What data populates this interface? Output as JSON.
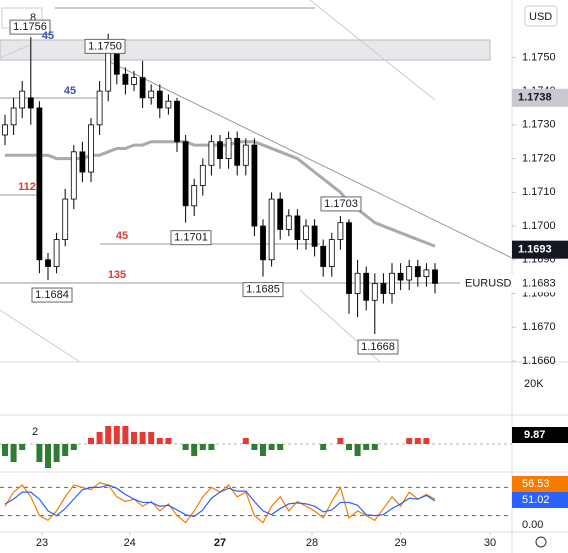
{
  "chart_data": {
    "type": "candlestick",
    "currency": "USD",
    "interval": "8",
    "ylim": [
      1.166,
      1.1767
    ],
    "yticks": [
      {
        "value": 1.175,
        "label": "1.1750"
      },
      {
        "value": 1.174,
        "label": "1.1740"
      },
      {
        "value": 1.173,
        "label": "1.1730"
      },
      {
        "value": 1.172,
        "label": "1.1720"
      },
      {
        "value": 1.171,
        "label": "1.1710"
      },
      {
        "value": 1.17,
        "label": "1.1700"
      },
      {
        "value": 1.169,
        "label": "1.1690"
      },
      {
        "value": 1.168,
        "label": "1.1680"
      },
      {
        "value": 1.167,
        "label": "1.1670"
      },
      {
        "value": 1.166,
        "label": "1.1660"
      }
    ],
    "xticks": [
      {
        "value": 4.3,
        "label": "23"
      },
      {
        "value": 14.5,
        "label": "24"
      },
      {
        "value": 25,
        "label": "27"
      },
      {
        "value": 35.7,
        "label": "28"
      },
      {
        "value": 46,
        "label": "29"
      },
      {
        "value": 56.4,
        "label": "30"
      }
    ],
    "candles": {
      "open": [
        1.1727,
        1.173,
        1.1735,
        1.1738,
        1.1735,
        1.169,
        1.1688,
        1.1696,
        1.1708,
        1.1722,
        1.1716,
        1.173,
        1.174,
        1.1752,
        1.1745,
        1.1742,
        1.1744,
        1.1738,
        1.174,
        1.1735,
        1.1737,
        1.1725,
        1.1706,
        1.1712,
        1.1718,
        1.1725,
        1.172,
        1.1726,
        1.1718,
        1.1724,
        1.17,
        1.169,
        1.1708,
        1.1699,
        1.1703,
        1.1696,
        1.17,
        1.1694,
        1.1688,
        1.1696,
        1.1701,
        1.168,
        1.1686,
        1.1678,
        1.1683,
        1.168,
        1.1686,
        1.1684,
        1.1688,
        1.1685,
        1.1687
      ],
      "high": [
        1.1733,
        1.1738,
        1.1743,
        1.1756,
        1.1737,
        1.1692,
        1.1698,
        1.1711,
        1.1724,
        1.1725,
        1.1732,
        1.1743,
        1.1757,
        1.1754,
        1.1747,
        1.1746,
        1.1749,
        1.1742,
        1.1742,
        1.1739,
        1.1738,
        1.1727,
        1.1714,
        1.172,
        1.1727,
        1.1727,
        1.1728,
        1.1728,
        1.1726,
        1.1726,
        1.1702,
        1.171,
        1.171,
        1.1705,
        1.1705,
        1.1702,
        1.1702,
        1.1696,
        1.1698,
        1.1703,
        1.1702,
        1.169,
        1.1688,
        1.1686,
        1.1686,
        1.1689,
        1.1689,
        1.169,
        1.169,
        1.1689,
        1.1689
      ],
      "low": [
        1.1724,
        1.1727,
        1.1732,
        1.173,
        1.1686,
        1.1684,
        1.1686,
        1.1694,
        1.1705,
        1.1713,
        1.1713,
        1.1727,
        1.1737,
        1.1742,
        1.1739,
        1.174,
        1.1735,
        1.1736,
        1.1732,
        1.1733,
        1.1722,
        1.1701,
        1.1703,
        1.1709,
        1.1715,
        1.1717,
        1.1717,
        1.1715,
        1.1715,
        1.1697,
        1.1685,
        1.1688,
        1.1696,
        1.1697,
        1.1693,
        1.1693,
        1.1691,
        1.1685,
        1.1685,
        1.1693,
        1.1674,
        1.1673,
        1.1675,
        1.1668,
        1.1677,
        1.1677,
        1.1681,
        1.1681,
        1.1682,
        1.1682,
        1.168
      ],
      "close": [
        1.173,
        1.1735,
        1.174,
        1.1735,
        1.169,
        1.1688,
        1.1696,
        1.1708,
        1.1722,
        1.1716,
        1.173,
        1.174,
        1.1752,
        1.1745,
        1.1742,
        1.1744,
        1.1738,
        1.174,
        1.1735,
        1.1737,
        1.1725,
        1.1706,
        1.1712,
        1.1718,
        1.1725,
        1.172,
        1.1726,
        1.1718,
        1.1724,
        1.17,
        1.169,
        1.1708,
        1.1699,
        1.1703,
        1.1696,
        1.17,
        1.1694,
        1.1688,
        1.1696,
        1.1701,
        1.168,
        1.1686,
        1.1678,
        1.1683,
        1.168,
        1.1686,
        1.1684,
        1.1688,
        1.1685,
        1.1687,
        1.1683
      ]
    },
    "ma": [
      1.1721,
      1.1721,
      1.1721,
      1.1721,
      1.1721,
      1.1721,
      1.172,
      1.172,
      1.172,
      1.172,
      1.1721,
      1.1721,
      1.1722,
      1.1723,
      1.1723,
      1.1724,
      1.1724,
      1.1725,
      1.1725,
      1.1725,
      1.1725,
      1.1725,
      1.1724,
      1.1724,
      1.1724,
      1.1724,
      1.1724,
      1.1725,
      1.1725,
      1.1725,
      1.1724,
      1.1723,
      1.1722,
      1.1721,
      1.172,
      1.1718,
      1.1716,
      1.1714,
      1.1712,
      1.171,
      1.1707,
      1.1705,
      1.1703,
      1.1701,
      1.17,
      1.1699,
      1.1698,
      1.1697,
      1.1696,
      1.1695,
      1.1694
    ],
    "ma_color": "#aaaaaa",
    "price_labels": {
      "values": [
        1.1756,
        1.175,
        1.1701,
        1.1684,
        1.1685,
        1.1703,
        1.1668
      ],
      "value_labels": [
        "1.1756",
        "1.1750",
        "1.1701",
        "1.1684",
        "1.1685",
        "1.1703",
        "1.1668"
      ]
    },
    "level_tags": [
      45,
      45,
      112,
      45,
      135
    ],
    "price_tags": [
      1.1738,
      1.1693
    ],
    "symbol": "EURUSD",
    "last_price": 1.1683,
    "volume_label": "20K",
    "macd": {
      "param": "2",
      "tag": 9.87,
      "ylim": [
        -4,
        4
      ],
      "histogram": [
        -2,
        -3,
        -1,
        0,
        -3,
        -4,
        -3,
        -2,
        -1,
        0,
        1,
        2,
        3,
        3,
        3,
        2,
        2,
        2,
        1,
        1,
        0,
        -1,
        -2,
        -1,
        -1,
        0,
        0,
        0,
        1,
        -1,
        -2,
        -1,
        -1,
        0,
        0,
        0,
        0,
        -1,
        0,
        1,
        -1,
        -2,
        -1,
        -1,
        0,
        0,
        0,
        1,
        1,
        1,
        0
      ]
    },
    "stoch": {
      "ylim": [
        0,
        100
      ],
      "yticks": [
        {
          "value": 0,
          "label": "0.00"
        }
      ],
      "levels": [
        80,
        20
      ],
      "series": [
        {
          "color": "#f57c00",
          "tag": 56.53,
          "values": [
            40,
            70,
            85,
            60,
            20,
            10,
            30,
            60,
            85,
            80,
            75,
            90,
            85,
            60,
            50,
            55,
            40,
            50,
            30,
            45,
            20,
            5,
            30,
            60,
            80,
            70,
            85,
            60,
            70,
            20,
            5,
            40,
            60,
            30,
            50,
            40,
            30,
            15,
            50,
            80,
            15,
            30,
            20,
            10,
            35,
            60,
            40,
            70,
            55,
            65,
            55
          ]
        },
        {
          "color": "#2962ff",
          "tag": 51.02,
          "values": [
            45,
            55,
            70,
            70,
            55,
            30,
            20,
            35,
            55,
            75,
            80,
            80,
            85,
            78,
            65,
            55,
            48,
            48,
            40,
            42,
            32,
            22,
            18,
            32,
            57,
            70,
            78,
            72,
            72,
            50,
            30,
            22,
            35,
            45,
            47,
            45,
            40,
            28,
            32,
            48,
            48,
            42,
            22,
            20,
            22,
            35,
            45,
            57,
            55,
            63,
            51
          ]
        }
      ]
    }
  }
}
